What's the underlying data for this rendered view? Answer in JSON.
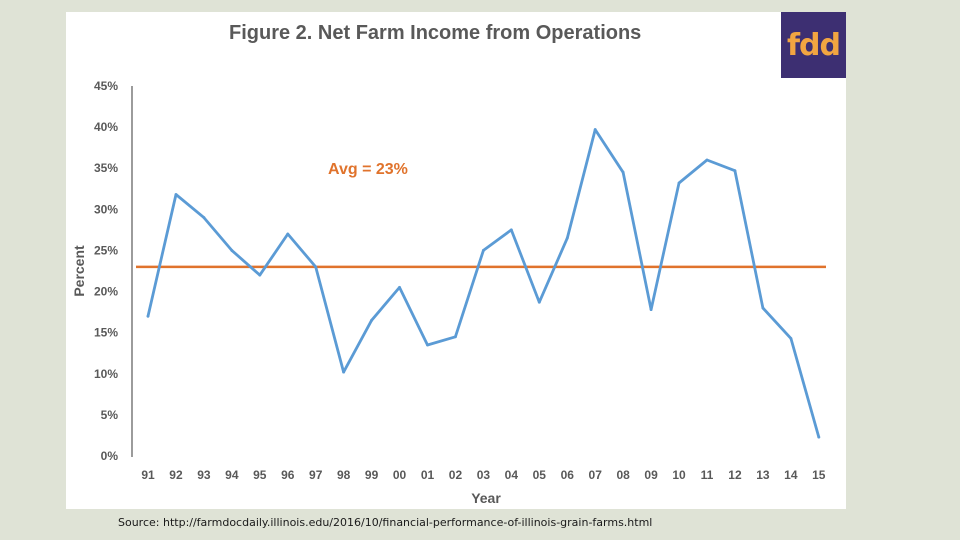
{
  "logo": {
    "text": "fdd"
  },
  "source": "Source: http://farmdocdaily.illinois.edu/2016/10/financial-performance-of-illinois-grain-farms.html",
  "colors": {
    "background": "#dfe3d6",
    "panel": "#ffffff",
    "series": "#5b9bd5",
    "average": "#e0732c",
    "axis": "#595959",
    "logo_bg": "#3d2f72",
    "logo_fg": "#f2a541"
  },
  "chart_data": {
    "type": "line",
    "title": "Figure 2. Net Farm Income from Operations",
    "xlabel": "Year",
    "ylabel": "Percent",
    "ylim": [
      0,
      45
    ],
    "yticks": [
      0,
      5,
      10,
      15,
      20,
      25,
      30,
      35,
      40,
      45
    ],
    "ytick_labels": [
      "0%",
      "5%",
      "10%",
      "15%",
      "20%",
      "25%",
      "30%",
      "35%",
      "40%",
      "45%"
    ],
    "categories": [
      "91",
      "92",
      "93",
      "94",
      "95",
      "96",
      "97",
      "98",
      "99",
      "00",
      "01",
      "02",
      "03",
      "04",
      "05",
      "06",
      "07",
      "08",
      "09",
      "10",
      "11",
      "12",
      "13",
      "14",
      "15"
    ],
    "series": [
      {
        "name": "Net Farm Income from Operations",
        "values": [
          17,
          31.8,
          29,
          25,
          22,
          27,
          23,
          10.2,
          16.5,
          20.5,
          13.5,
          14.5,
          25,
          27.5,
          18.7,
          26.5,
          39.7,
          34.5,
          17.8,
          33.2,
          36,
          34.7,
          18,
          14.3,
          2.3
        ]
      }
    ],
    "average": {
      "value": 23,
      "label": "Avg = 23%"
    },
    "grid": false
  }
}
